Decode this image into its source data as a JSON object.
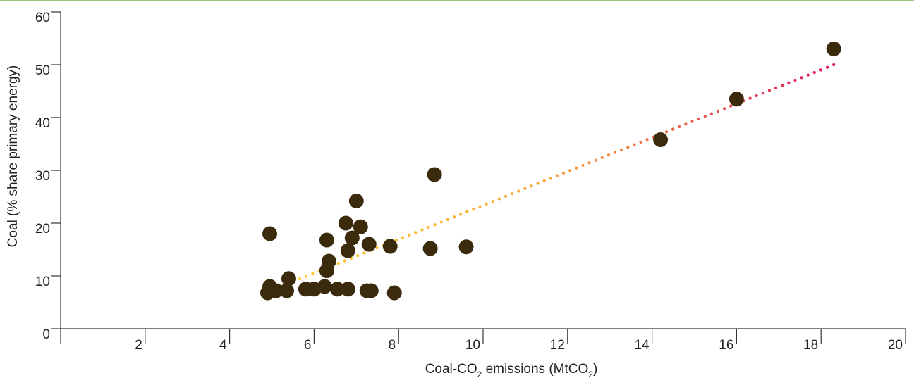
{
  "chart_data": {
    "type": "scatter",
    "title": "",
    "xlabel": {
      "pre": "Coal-CO",
      "sub1": "2",
      "mid": " emissions (MtCO",
      "sub2": "2",
      "post": ")"
    },
    "ylabel": "Coal (% share primary energy)",
    "xlim": [
      0,
      20
    ],
    "ylim": [
      0,
      60
    ],
    "xticks": [
      2,
      4,
      6,
      8,
      10,
      12,
      14,
      16,
      18,
      20
    ],
    "yticks": [
      0,
      10,
      20,
      30,
      40,
      50,
      60
    ],
    "grid": false,
    "legend": "none",
    "colors": {
      "points": "#3b2a0c",
      "trend_start": "#ffd21c",
      "trend_mid": "#f7a23b",
      "trend_end": "#e0125a",
      "axis": "#333333",
      "top_rule": "#9cc47b"
    },
    "series": [
      {
        "points": [
          [
            4.9,
            6.8
          ],
          [
            4.95,
            8.0
          ],
          [
            5.1,
            7.2
          ],
          [
            5.35,
            7.2
          ],
          [
            5.4,
            9.5
          ],
          [
            4.95,
            18.0
          ],
          [
            5.8,
            7.5
          ],
          [
            6.0,
            7.5
          ],
          [
            6.25,
            8.0
          ],
          [
            6.55,
            7.5
          ],
          [
            6.8,
            7.5
          ],
          [
            6.3,
            11.0
          ],
          [
            6.35,
            12.8
          ],
          [
            6.3,
            16.8
          ],
          [
            6.8,
            14.8
          ],
          [
            6.9,
            17.2
          ],
          [
            6.75,
            20.0
          ],
          [
            7.1,
            19.3
          ],
          [
            7.0,
            24.2
          ],
          [
            7.3,
            16.0
          ],
          [
            7.25,
            7.2
          ],
          [
            7.35,
            7.2
          ],
          [
            7.8,
            15.6
          ],
          [
            7.9,
            6.8
          ],
          [
            8.75,
            15.2
          ],
          [
            8.85,
            29.2
          ],
          [
            9.6,
            15.5
          ],
          [
            14.2,
            35.8
          ],
          [
            16.0,
            43.5
          ],
          [
            18.3,
            53.0
          ]
        ]
      }
    ],
    "trendline": {
      "style": "dotted",
      "from": [
        4.9,
        7.0
      ],
      "to": [
        18.3,
        50.0
      ]
    }
  }
}
